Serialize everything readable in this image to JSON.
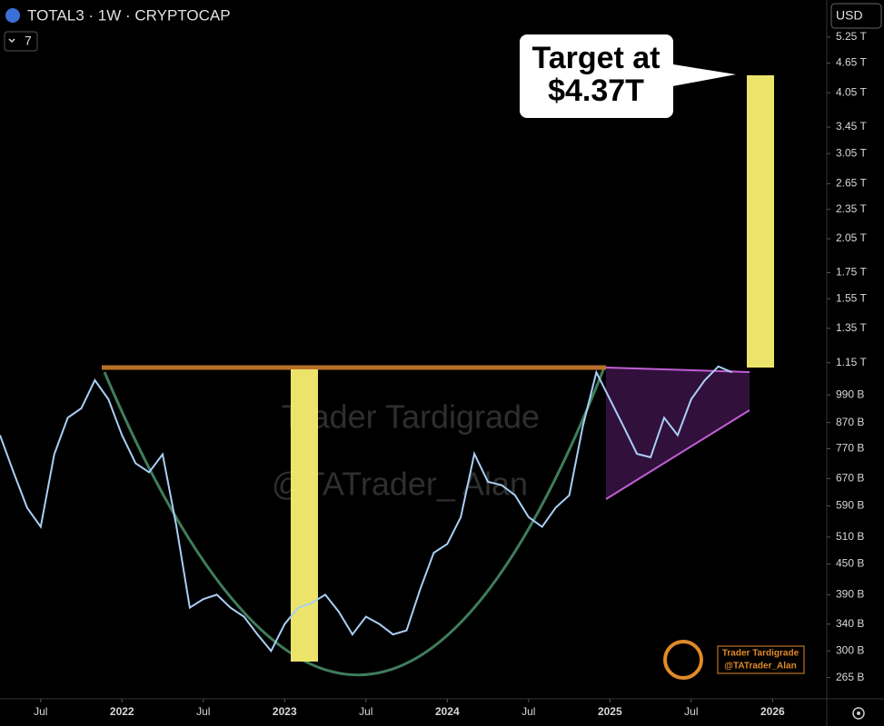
{
  "chart_data": {
    "type": "line",
    "title": "TOTAL3 · 1W · CRYPTOCAP",
    "indicator_count": "7",
    "currency": "USD",
    "callout": [
      "Target at",
      "$4.37T"
    ],
    "watermark": [
      "Trader Tardigrade",
      "@TATrader_ Alan"
    ],
    "logo_text": [
      "Trader Tardigrade",
      "@TATrader_Alan"
    ],
    "color": "#a9cff5",
    "log_scale": true,
    "x": [
      "2021-04",
      "2021-05",
      "2021-06",
      "2021-07",
      "2021-08",
      "2021-09",
      "2021-10",
      "2021-11",
      "2021-12",
      "2022-01",
      "2022-02",
      "2022-03",
      "2022-04",
      "2022-05",
      "2022-06",
      "2022-07",
      "2022-08",
      "2022-09",
      "2022-10",
      "2022-11",
      "2022-12",
      "2023-01",
      "2023-02",
      "2023-03",
      "2023-04",
      "2023-05",
      "2023-06",
      "2023-07",
      "2023-08",
      "2023-09",
      "2023-10",
      "2023-11",
      "2023-12",
      "2024-01",
      "2024-02",
      "2024-03",
      "2024-04",
      "2024-05",
      "2024-06",
      "2024-07",
      "2024-08",
      "2024-09",
      "2024-10",
      "2024-11",
      "2024-12",
      "2025-01",
      "2025-02",
      "2025-03",
      "2025-04",
      "2025-05",
      "2025-06",
      "2025-07",
      "2025-08",
      "2025-09",
      "2025-10"
    ],
    "values": [
      820,
      690,
      585,
      535,
      750,
      890,
      930,
      1060,
      970,
      820,
      720,
      690,
      750,
      540,
      367,
      382,
      390,
      367,
      352,
      324,
      300,
      340,
      367,
      375,
      390,
      360,
      324,
      352,
      340,
      324,
      330,
      400,
      474,
      494,
      560,
      752,
      660,
      650,
      620,
      560,
      535,
      585,
      620,
      855,
      1100,
      970,
      855,
      752,
      740,
      890,
      820,
      970,
      1060,
      1130,
      1100
    ],
    "xlim": [
      "2021-04",
      "2026-05"
    ],
    "xticks": [
      {
        "value": "2021-07",
        "label": "Jul"
      },
      {
        "value": "2022-01",
        "label": "2022"
      },
      {
        "value": "2022-07",
        "label": "Jul"
      },
      {
        "value": "2023-01",
        "label": "2023"
      },
      {
        "value": "2023-07",
        "label": "Jul"
      },
      {
        "value": "2024-01",
        "label": "2024"
      },
      {
        "value": "2024-07",
        "label": "Jul"
      },
      {
        "value": "2025-01",
        "label": "2025"
      },
      {
        "value": "2025-07",
        "label": "Jul"
      },
      {
        "value": "2026-01",
        "label": "2026"
      }
    ],
    "ylim": [
      240,
      6240
    ],
    "yticks": [
      {
        "value": 5250,
        "label": "5.25 T"
      },
      {
        "value": 4650,
        "label": "4.65 T"
      },
      {
        "value": 4050,
        "label": "4.05 T"
      },
      {
        "value": 3450,
        "label": "3.45 T"
      },
      {
        "value": 3050,
        "label": "3.05 T"
      },
      {
        "value": 2650,
        "label": "2.65 T"
      },
      {
        "value": 2350,
        "label": "2.35 T"
      },
      {
        "value": 2050,
        "label": "2.05 T"
      },
      {
        "value": 1750,
        "label": "1.75 T"
      },
      {
        "value": 1550,
        "label": "1.55 T"
      },
      {
        "value": 1350,
        "label": "1.35 T"
      },
      {
        "value": 1150,
        "label": "1.15 T"
      },
      {
        "value": 990,
        "label": "990 B"
      },
      {
        "value": 870,
        "label": "870 B"
      },
      {
        "value": 770,
        "label": "770 B"
      },
      {
        "value": 670,
        "label": "670 B"
      },
      {
        "value": 590,
        "label": "590 B"
      },
      {
        "value": 510,
        "label": "510 B"
      },
      {
        "value": 450,
        "label": "450 B"
      },
      {
        "value": 390,
        "label": "390 B"
      },
      {
        "value": 340,
        "label": "340 B"
      },
      {
        "value": 300,
        "label": "300 B"
      },
      {
        "value": 265,
        "label": "265 B"
      }
    ]
  }
}
